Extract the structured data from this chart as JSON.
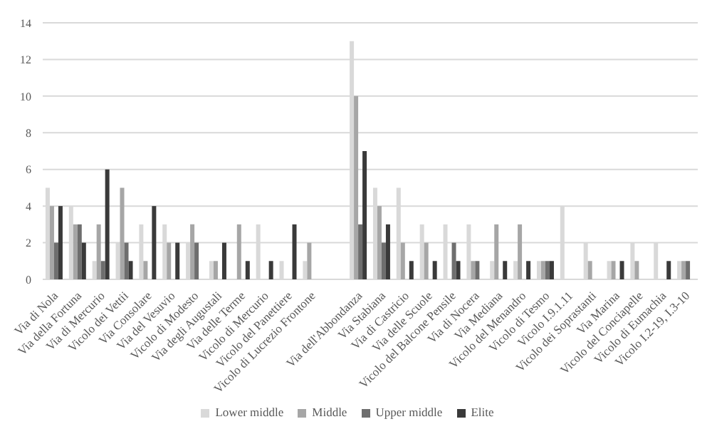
{
  "chart_data": {
    "type": "bar",
    "categories": [
      "Via di Nola",
      "Via della Fortuna",
      "Via di Mercurio",
      "Vicolo dei Vettii",
      "Via Consolare",
      "Via del Vesuvio",
      "Vicolo di Modesto",
      "Via degli Augustali",
      "Via delle Terme",
      "Vicolo di Mercurio",
      "Vicolo del Panettiere",
      "Vicolo di Lucrezio Frontone",
      null,
      "Via dell'Abbondanza",
      "Via Stabiana",
      "Via di Castricio",
      "Via delle Scuole",
      "Vicolo del Balcone Pensile",
      "Via di Nocera",
      "Via Mediana",
      "Vicolo del Menandro",
      "Vicolo di Tesmo",
      "Vicolo I.9.1.11",
      "Vicolo dei Soprastanti",
      "Via Marina",
      "Vicolo del Conciapelle",
      "Vicolo di Eumachia",
      "Vicolo I.2-19, I.3-10"
    ],
    "series": [
      {
        "name": "Lower middle",
        "color": "#d9d9d9",
        "values": [
          5,
          4,
          1,
          2,
          3,
          3,
          2,
          1,
          0,
          3,
          1,
          1,
          null,
          13,
          5,
          5,
          3,
          3,
          3,
          1,
          1,
          1,
          4,
          2,
          1,
          2,
          2,
          1
        ]
      },
      {
        "name": "Middle",
        "color": "#a6a6a6",
        "values": [
          4,
          3,
          3,
          5,
          1,
          2,
          3,
          1,
          3,
          0,
          0,
          2,
          null,
          10,
          4,
          2,
          2,
          0,
          1,
          3,
          3,
          1,
          0,
          1,
          1,
          1,
          0,
          1
        ]
      },
      {
        "name": "Upper middle",
        "color": "#6e6e6e",
        "values": [
          2,
          3,
          1,
          2,
          0,
          0,
          2,
          0,
          0,
          0,
          0,
          0,
          null,
          3,
          2,
          0,
          0,
          2,
          1,
          0,
          0,
          1,
          0,
          0,
          0,
          0,
          0,
          1
        ]
      },
      {
        "name": "Elite",
        "color": "#3a3a3a",
        "values": [
          4,
          2,
          6,
          1,
          4,
          2,
          0,
          2,
          1,
          1,
          3,
          0,
          null,
          7,
          3,
          1,
          1,
          1,
          0,
          1,
          1,
          1,
          0,
          0,
          1,
          0,
          1,
          0
        ]
      }
    ],
    "ylim": [
      0,
      14
    ],
    "yticks": [
      0,
      2,
      4,
      6,
      8,
      10,
      12,
      14
    ],
    "grid": "y",
    "legend": "bottom"
  }
}
